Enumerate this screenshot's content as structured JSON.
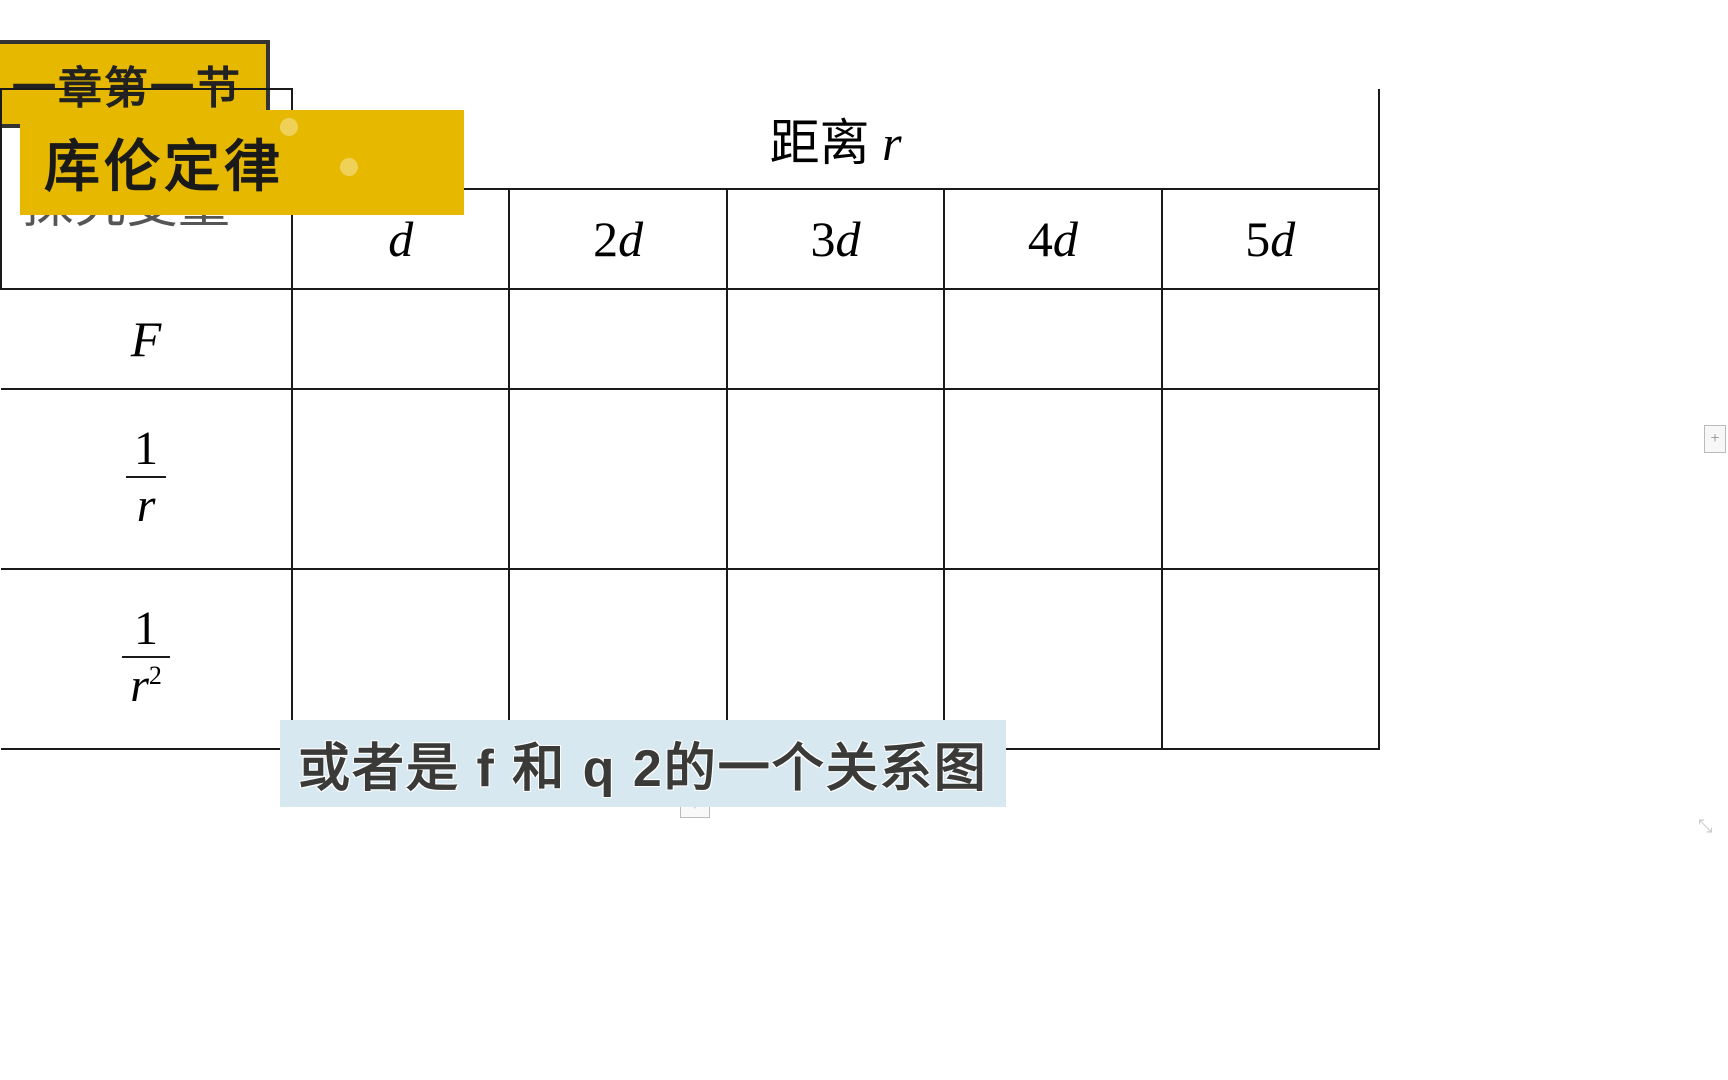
{
  "banners": {
    "chapter": "一章第一节",
    "law": "库伦定律",
    "var_label": "探究变量"
  },
  "table": {
    "type": "table",
    "header_span_label": "距离 r",
    "columns": [
      "d",
      "2d",
      "3d",
      "4d",
      "5d"
    ],
    "row_labels": {
      "f": "F",
      "one_over_r_num": "1",
      "one_over_r_den": "r",
      "one_over_r2_num": "1",
      "one_over_r2_den": "r",
      "one_over_r2_exp": "2"
    },
    "border_color": "#1a1a1a",
    "header_fontsize": 52,
    "cell_fontsize": 50,
    "col_widths": {
      "label_col": 292,
      "data_col": 218
    },
    "row_heights": {
      "header": 120,
      "subheader": 100,
      "f_row": 100,
      "tall_row": 180
    }
  },
  "caption": "或者是 f 和 q 2的一个关系图",
  "colors": {
    "banner_bg": "#e6b800",
    "banner_text": "#1a1a1a",
    "caption_bg": "#d8e8f0",
    "caption_text": "#3a3a38",
    "page_bg": "#ffffff"
  },
  "widgets": {
    "plus": "+",
    "handle": "+"
  }
}
